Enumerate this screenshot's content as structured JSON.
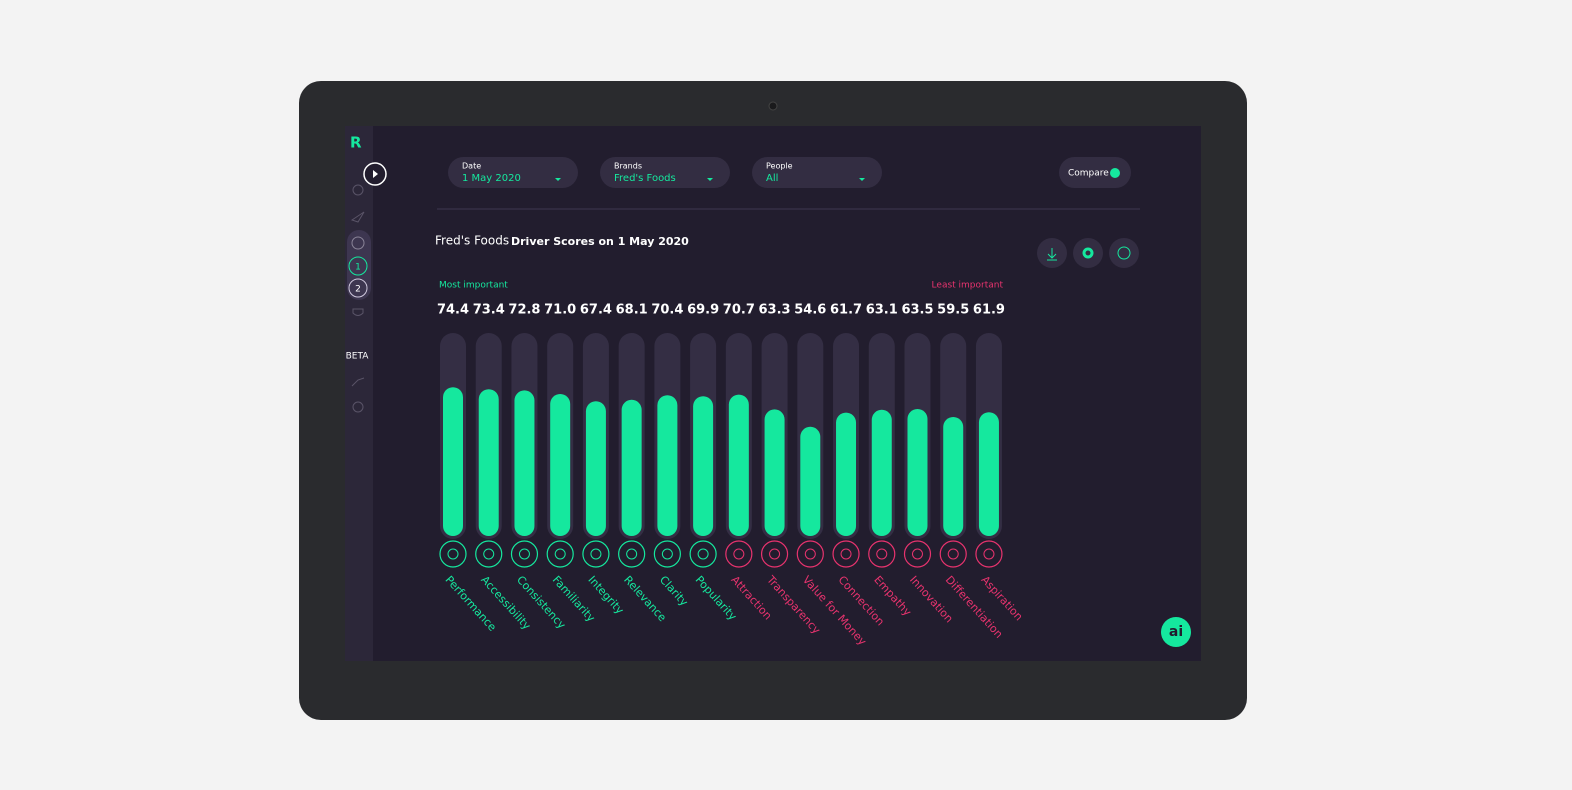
{
  "filters": [
    {
      "label": "Date",
      "value": "1 May 2020"
    },
    {
      "label": "Brands",
      "value": "Fred's Foods"
    },
    {
      "label": "People",
      "value": "All"
    }
  ],
  "compare": "Compare",
  "sidebar": {
    "items": [
      "1",
      "2"
    ],
    "beta": "BETA"
  },
  "assistant": "ai",
  "chart_data": {
    "type": "bar",
    "title": "Fred's Foods",
    "subtitle": "Driver Scores on 1 May 2020",
    "scale_start": "Most important",
    "scale_end": "Least important",
    "categories": [
      "Performance",
      "Accessibility",
      "Consistency",
      "Familiarity",
      "Integrity",
      "Relevance",
      "Clarity",
      "Popularity",
      "Attraction",
      "Transparency",
      "Value for Money",
      "Connection",
      "Empathy",
      "Innovation",
      "Differentiation",
      "Aspiration"
    ],
    "values": [
      74.4,
      73.4,
      72.8,
      71.0,
      67.4,
      68.1,
      70.4,
      69.9,
      70.7,
      63.3,
      54.6,
      61.7,
      63.1,
      63.5,
      59.5,
      61.9
    ],
    "value_labels": [
      "74.4",
      "73.4",
      "72.8",
      "71.0",
      "67.4",
      "68.1",
      "70.4",
      "69.9",
      "70.7",
      "63.3",
      "54.6",
      "61.7",
      "63.1",
      "63.5",
      "59.5",
      "61.9"
    ],
    "ylim": [
      0,
      100
    ],
    "color": "#15e89e",
    "category_colors": [
      "#15e89e",
      "#15e89e",
      "#15e89e",
      "#15e89e",
      "#15e89e",
      "#15e89e",
      "#15e89e",
      "#15e89e",
      "#e8336e",
      "#e8336e",
      "#e8336e",
      "#e8336e",
      "#e8336e",
      "#e8336e",
      "#e8336e",
      "#e8336e"
    ]
  }
}
